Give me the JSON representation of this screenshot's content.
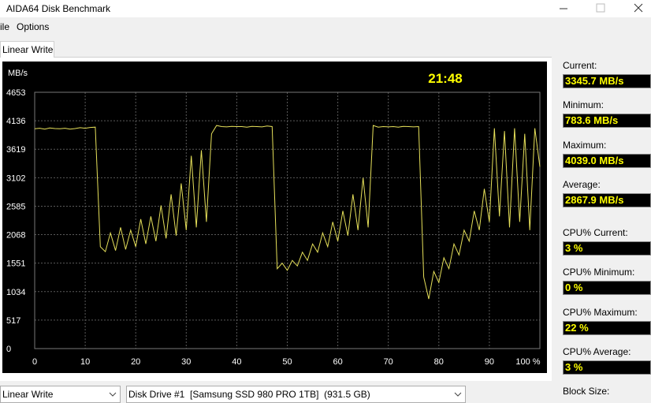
{
  "window": {
    "title": "AIDA64 Disk Benchmark"
  },
  "menu": [
    "ile",
    "Options"
  ],
  "tab": "Linear Write",
  "chart_data": {
    "type": "line",
    "y_label": "MB/s",
    "time": "21:48",
    "x": [
      0,
      1,
      2,
      3,
      4,
      5,
      6,
      7,
      8,
      9,
      10,
      11,
      12,
      13,
      14,
      15,
      16,
      17,
      18,
      19,
      20,
      21,
      22,
      23,
      24,
      25,
      26,
      27,
      28,
      29,
      30,
      31,
      32,
      33,
      34,
      35,
      36,
      37,
      38,
      39,
      40,
      41,
      42,
      43,
      44,
      45,
      46,
      47,
      48,
      49,
      50,
      51,
      52,
      53,
      54,
      55,
      56,
      57,
      58,
      59,
      60,
      61,
      62,
      63,
      64,
      65,
      66,
      67,
      68,
      69,
      70,
      71,
      72,
      73,
      74,
      75,
      76,
      77,
      78,
      79,
      80,
      81,
      82,
      83,
      84,
      85,
      86,
      87,
      88,
      89,
      90,
      91,
      92,
      93,
      94,
      95,
      96,
      97,
      98,
      99,
      100
    ],
    "series": [
      {
        "color": "#e6e05a",
        "values": [
          3990,
          4000,
          3985,
          4005,
          3995,
          3990,
          4000,
          3985,
          3995,
          4010,
          4000,
          4015,
          4020,
          1850,
          1760,
          2100,
          1780,
          2200,
          1800,
          2150,
          1850,
          2350,
          1900,
          2400,
          1950,
          2600,
          2000,
          2800,
          2050,
          3000,
          2150,
          3500,
          2200,
          3600,
          2300,
          3900,
          4050,
          4030,
          4025,
          4035,
          4030,
          4030,
          4020,
          4035,
          4030,
          4025,
          4040,
          4030,
          1450,
          1550,
          1420,
          1600,
          1500,
          1750,
          1600,
          1900,
          1750,
          2100,
          1850,
          2300,
          1950,
          2500,
          2050,
          2800,
          2150,
          3100,
          2200,
          4050,
          4020,
          4030,
          4025,
          4030,
          4020,
          4035,
          4030,
          4025,
          4030,
          1300,
          900,
          1400,
          1200,
          1650,
          1450,
          1900,
          1700,
          2150,
          1950,
          2500,
          2150,
          2900,
          2300,
          4000,
          2400,
          3950,
          2200,
          4000,
          2300,
          3900,
          2150,
          4000,
          3300
        ]
      }
    ],
    "xlim": [
      0,
      100
    ],
    "xticks": [
      0,
      10,
      20,
      30,
      40,
      50,
      60,
      70,
      80,
      90,
      {
        "value": 100,
        "label": "100 %"
      }
    ],
    "ylim": [
      0,
      4653
    ],
    "yticks": [
      0,
      517,
      1034,
      1551,
      2068,
      2585,
      3102,
      3619,
      4136,
      4653
    ],
    "grid": true
  },
  "stats": [
    {
      "label": "Current:",
      "value": "3345.7 MB/s"
    },
    {
      "label": "Minimum:",
      "value": "783.6 MB/s"
    },
    {
      "label": "Maximum:",
      "value": "4039.0 MB/s"
    },
    {
      "label": "Average:",
      "value": "2867.9 MB/s"
    },
    {
      "label": "CPU% Current:",
      "value": "3 %"
    },
    {
      "label": "CPU% Minimum:",
      "value": "0 %"
    },
    {
      "label": "CPU% Maximum:",
      "value": "22 %"
    },
    {
      "label": "CPU% Average:",
      "value": "3 %"
    }
  ],
  "block_size_label": "Block Size:",
  "controls": {
    "test": "Linear Write",
    "drive": "Disk Drive #1  [Samsung SSD 980 PRO 1TB]  (931.5 GB)"
  }
}
